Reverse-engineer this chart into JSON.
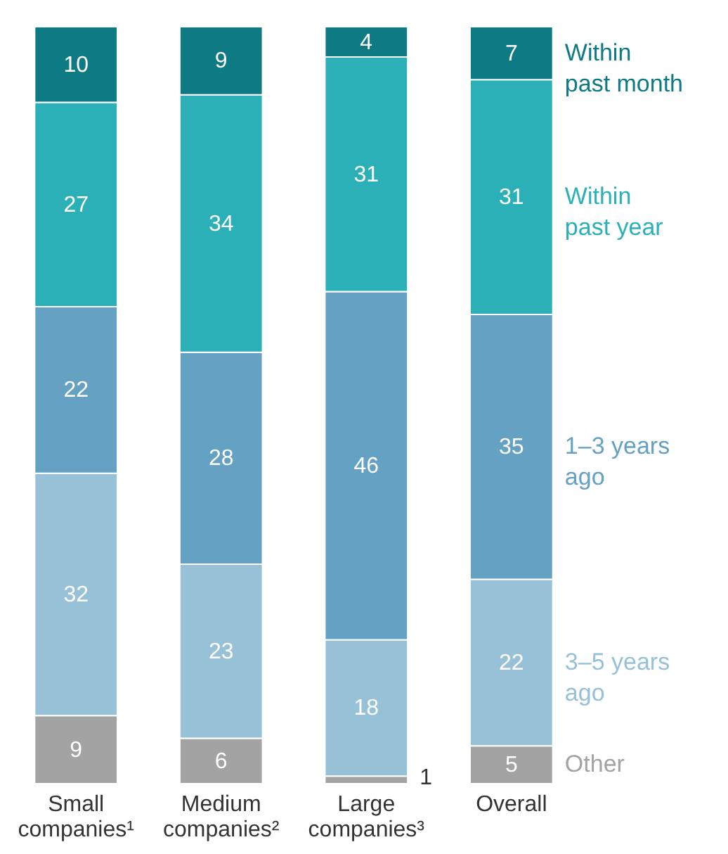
{
  "chart_data": {
    "type": "bar",
    "stacked": true,
    "data_labels": true,
    "legend": "right",
    "categories": [
      "Small companies¹",
      "Medium companies²",
      "Large companies³",
      "Overall"
    ],
    "series": [
      {
        "name": "Other",
        "color": "#a3a3a3",
        "values": [
          9,
          6,
          1,
          5
        ]
      },
      {
        "name": "3–5 years ago",
        "color": "#97c1d6",
        "values": [
          32,
          23,
          18,
          22
        ]
      },
      {
        "name": "1–3 years ago",
        "color": "#64a1c2",
        "values": [
          22,
          28,
          46,
          35
        ]
      },
      {
        "name": "Within past year",
        "color": "#2bb0b8",
        "values": [
          27,
          34,
          31,
          31
        ]
      },
      {
        "name": "Within past month",
        "color": "#0e7a83",
        "values": [
          10,
          9,
          4,
          7
        ]
      }
    ]
  }
}
